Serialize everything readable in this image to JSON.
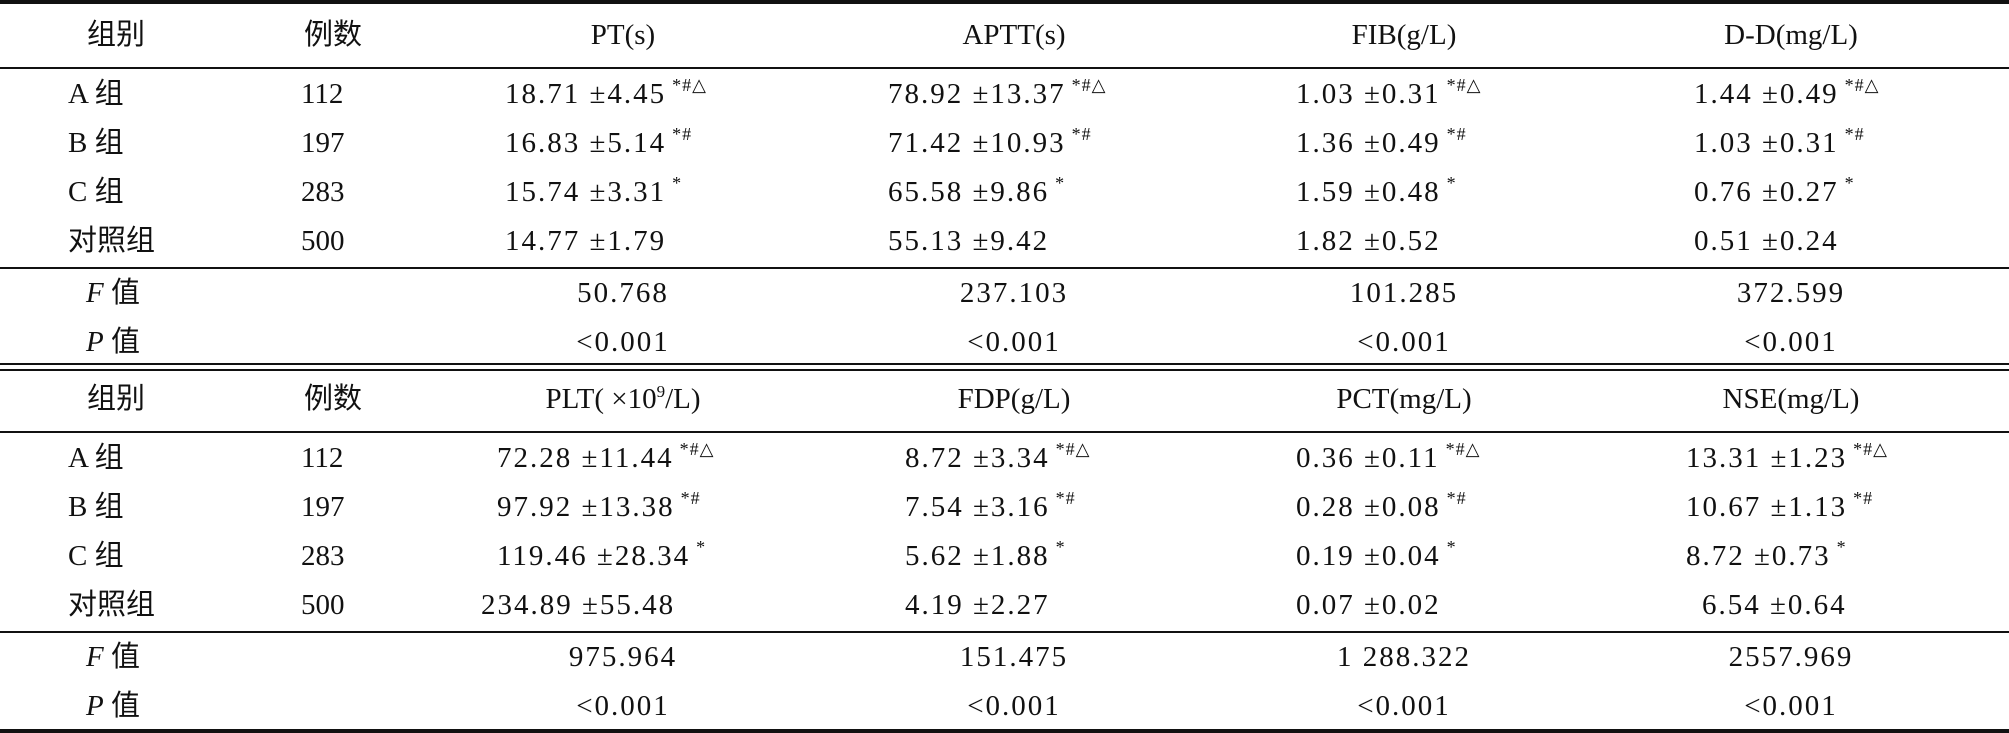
{
  "tables": [
    {
      "headers": [
        "组别",
        "例数",
        "PT(s)",
        "APTT(s)",
        "FIB(g/L)",
        "D-D(mg/L)"
      ],
      "rows": [
        {
          "group": "A 组",
          "n": "112",
          "values": [
            "18.71 ±4.45",
            "78.92 ±13.37",
            "1.03 ±0.31",
            "1.44 ±0.49"
          ],
          "marks": [
            "*#△",
            "*#△",
            "*#△",
            "*#△"
          ]
        },
        {
          "group": "B 组",
          "n": "197",
          "values": [
            "16.83 ±5.14",
            "71.42 ±10.93",
            "1.36 ±0.49",
            "1.03 ±0.31"
          ],
          "marks": [
            "*#",
            "*#",
            "*#",
            "*#"
          ]
        },
        {
          "group": "C 组",
          "n": "283",
          "values": [
            "15.74 ±3.31",
            "65.58 ±9.86",
            "1.59 ±0.48",
            "0.76 ±0.27"
          ],
          "marks": [
            "*",
            "*",
            "*",
            "*"
          ]
        },
        {
          "group": "对照组",
          "n": "500",
          "values": [
            "14.77 ±1.79",
            "55.13 ±9.42",
            "1.82 ±0.52",
            "0.51 ±0.24"
          ],
          "marks": [
            "",
            "",
            "",
            ""
          ]
        }
      ],
      "f_row": {
        "label_var": "F",
        "label_text": "值",
        "values": [
          "50.768",
          "237.103",
          "101.285",
          "372.599"
        ]
      },
      "p_row": {
        "label_var": "P",
        "label_text": "值",
        "values": [
          "<0.001",
          "<0.001",
          "<0.001",
          "<0.001"
        ]
      }
    },
    {
      "headers": [
        "组别",
        "例数",
        "PLT( ×10",
        "FDP(g/L)",
        "PCT(mg/L)",
        "NSE(mg/L)"
      ],
      "plt_exponent": "9",
      "plt_unit_suffix": "/L)",
      "rows": [
        {
          "group": "A 组",
          "n": "112",
          "values": [
            "72.28 ±11.44",
            "8.72 ±3.34",
            "0.36 ±0.11",
            "13.31 ±1.23"
          ],
          "marks": [
            "*#△",
            "*#△",
            "*#△",
            "*#△"
          ]
        },
        {
          "group": "B 组",
          "n": "197",
          "values": [
            "97.92 ±13.38",
            "7.54 ±3.16",
            "0.28 ±0.08",
            "10.67 ±1.13"
          ],
          "marks": [
            "*#",
            "*#",
            "*#",
            "*#"
          ]
        },
        {
          "group": "C 组",
          "n": "283",
          "values": [
            "119.46 ±28.34",
            "5.62 ±1.88",
            "0.19 ±0.04",
            "8.72 ±0.73"
          ],
          "marks": [
            "*",
            "*",
            "*",
            "*"
          ]
        },
        {
          "group": "对照组",
          "n": "500",
          "values": [
            "234.89 ±55.48",
            "4.19 ±2.27",
            "0.07 ±0.02",
            "6.54 ±0.64"
          ],
          "marks": [
            "",
            "",
            "",
            ""
          ]
        }
      ],
      "f_row": {
        "label_var": "F",
        "label_text": "值",
        "values": [
          "975.964",
          "151.475",
          "1 288.322",
          "2557.969"
        ]
      },
      "p_row": {
        "label_var": "P",
        "label_text": "值",
        "values": [
          "<0.001",
          "<0.001",
          "<0.001",
          "<0.001"
        ]
      }
    }
  ]
}
